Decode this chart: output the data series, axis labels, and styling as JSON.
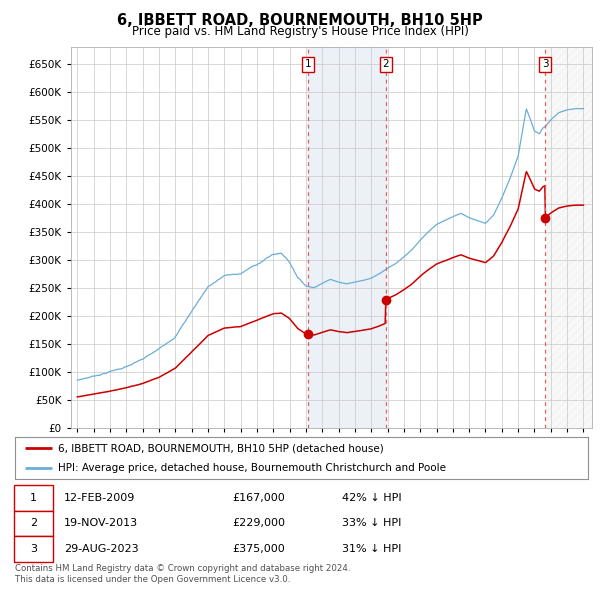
{
  "title": "6, IBBETT ROAD, BOURNEMOUTH, BH10 5HP",
  "subtitle": "Price paid vs. HM Land Registry's House Price Index (HPI)",
  "legend_label_red": "6, IBBETT ROAD, BOURNEMOUTH, BH10 5HP (detached house)",
  "legend_label_blue": "HPI: Average price, detached house, Bournemouth Christchurch and Poole",
  "footer1": "Contains HM Land Registry data © Crown copyright and database right 2024.",
  "footer2": "This data is licensed under the Open Government Licence v3.0.",
  "transactions": [
    {
      "num": 1,
      "date": "12-FEB-2009",
      "price": "£167,000",
      "pct": "42% ↓ HPI",
      "year": 2009.12
    },
    {
      "num": 2,
      "date": "19-NOV-2013",
      "price": "£229,000",
      "pct": "33% ↓ HPI",
      "year": 2013.89
    },
    {
      "num": 3,
      "date": "29-AUG-2023",
      "price": "£375,000",
      "pct": "31% ↓ HPI",
      "year": 2023.66
    }
  ],
  "hpi_color": "#6baed6",
  "price_color": "#cc0000",
  "grid_color": "#c8c8c8",
  "bg_color": "#ffffff",
  "plot_bg": "#ffffff",
  "transaction_vline_color": "#e06060",
  "transaction_region_color": "#dce6f1",
  "ylim": [
    0,
    680000
  ],
  "xlim_start": 1994.6,
  "xlim_end": 2026.5
}
